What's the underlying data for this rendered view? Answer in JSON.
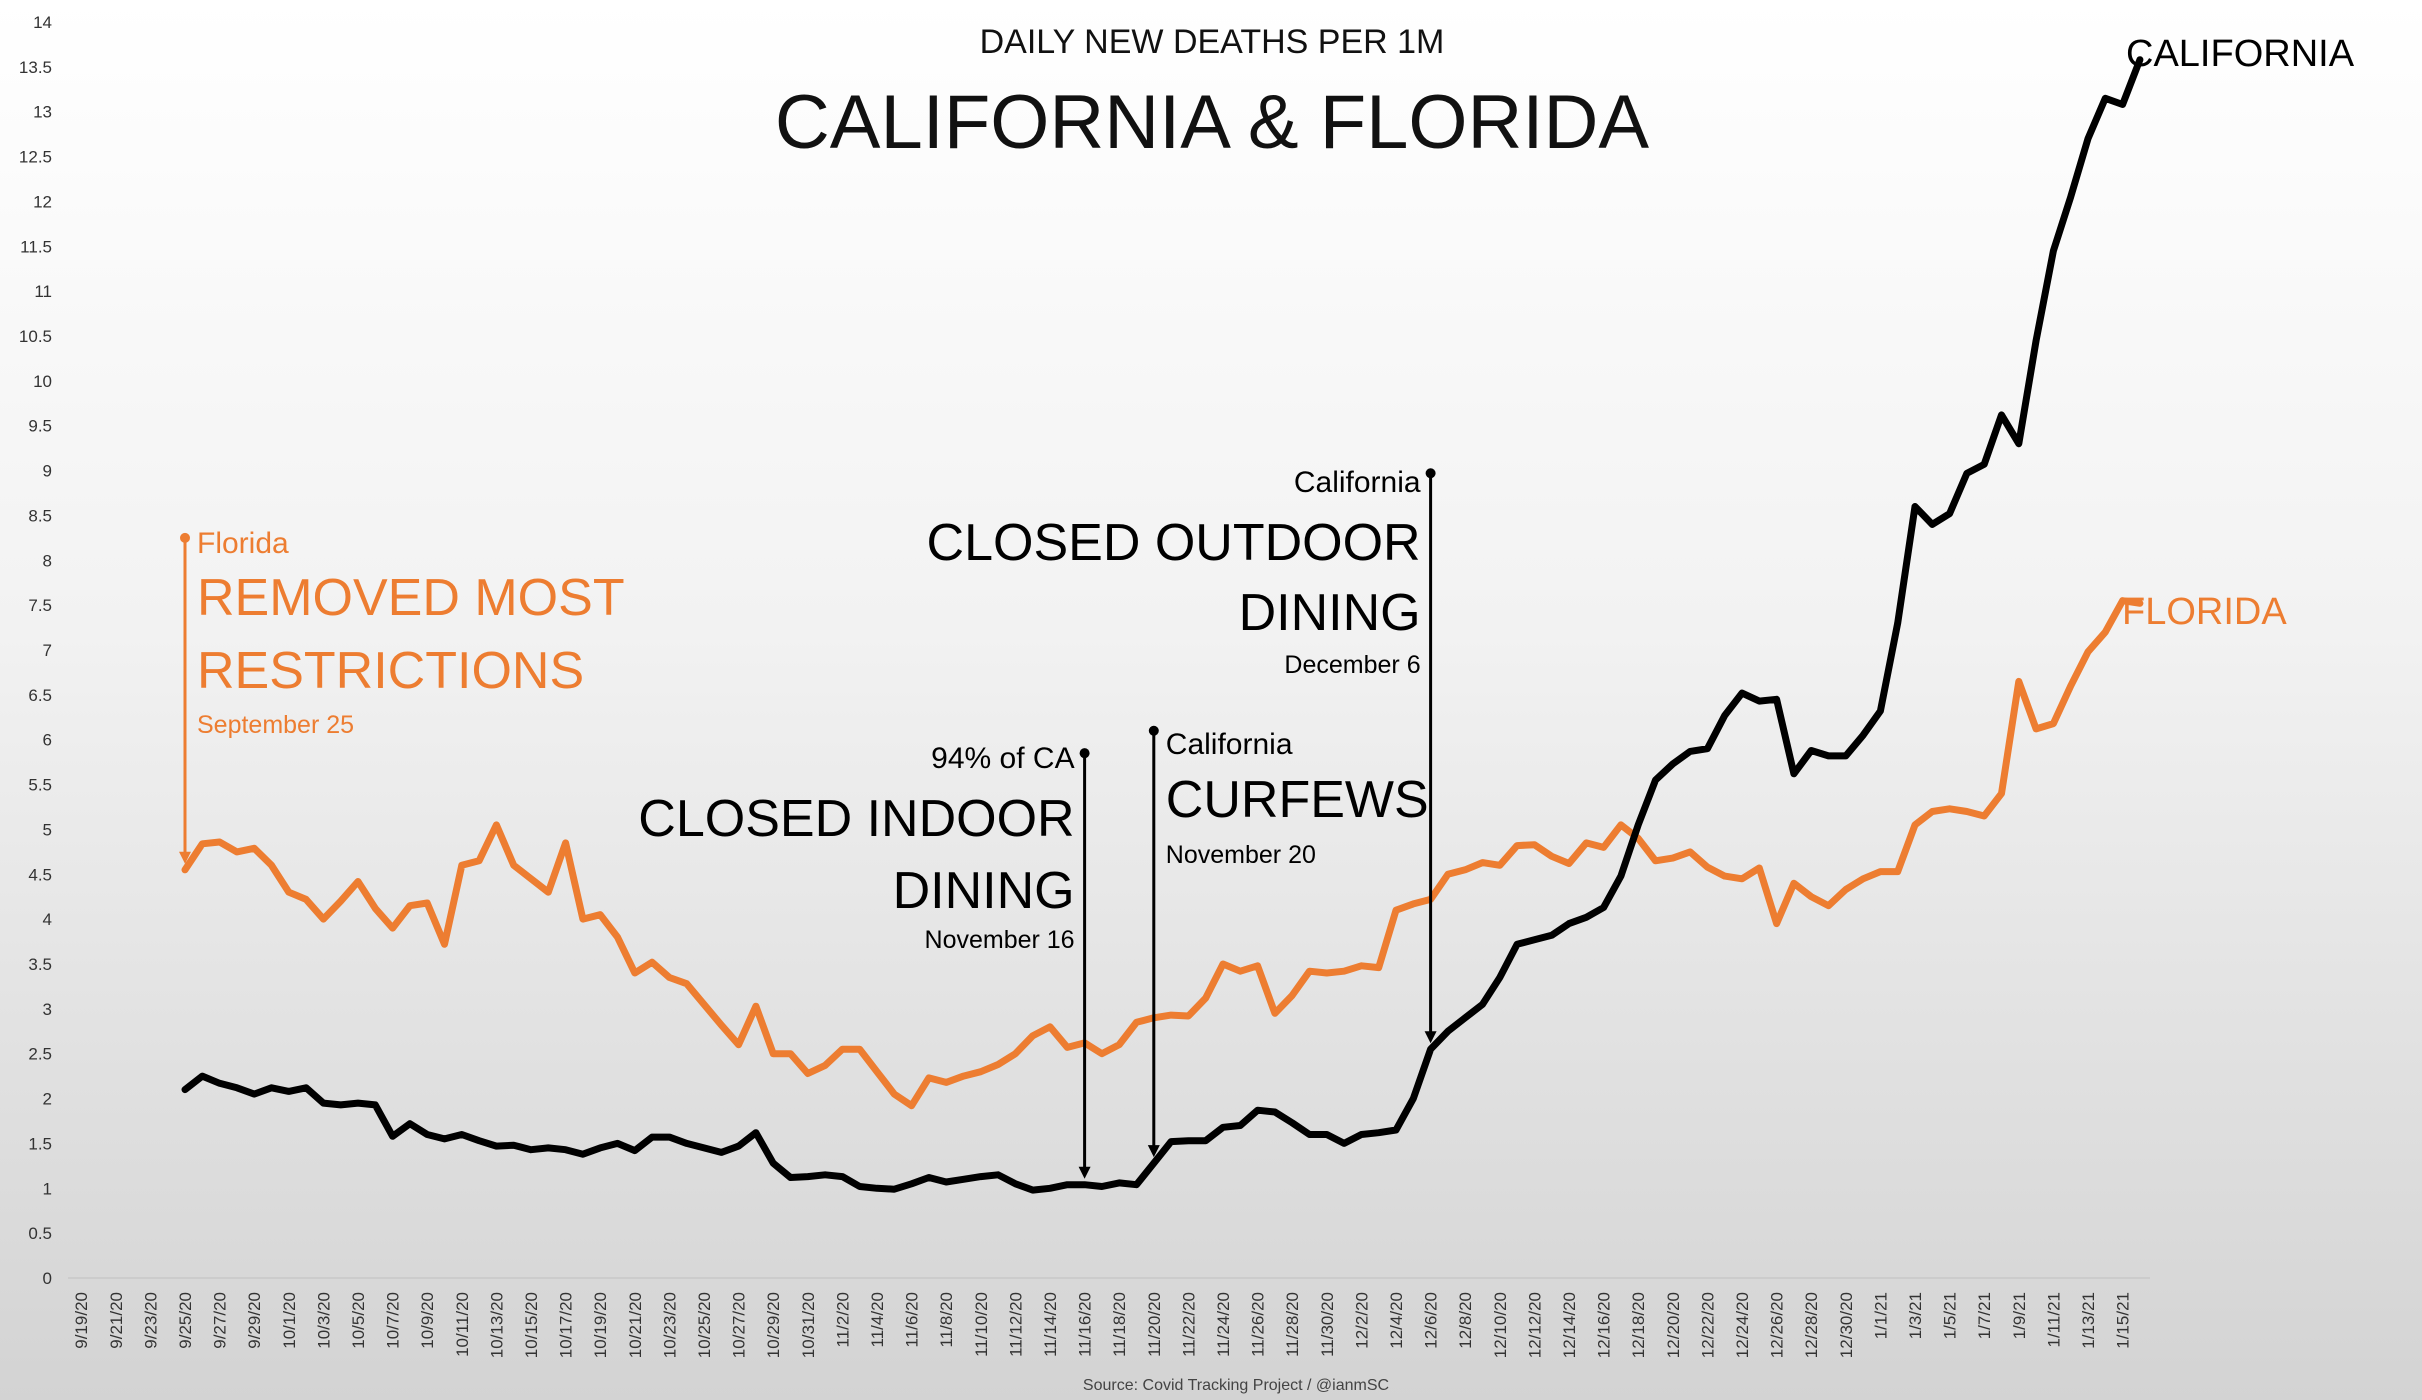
{
  "chart_data": {
    "type": "line",
    "title": "CALIFORNIA & FLORIDA",
    "subtitle": "DAILY NEW DEATHS PER 1M",
    "source": "Source: Covid Tracking Project / @ianmSC",
    "ylim": [
      0,
      14
    ],
    "yticks": [
      "0",
      "0.5",
      "1",
      "1.5",
      "2",
      "2.5",
      "3",
      "3.5",
      "4",
      "4.5",
      "5",
      "5.5",
      "6",
      "6.5",
      "7",
      "7.5",
      "8",
      "8.5",
      "9",
      "9.5",
      "10",
      "10.5",
      "11",
      "11.5",
      "12",
      "12.5",
      "13",
      "13.5",
      "14"
    ],
    "x_tick_labels": [
      "9/19/20",
      "9/21/20",
      "9/23/20",
      "9/25/20",
      "9/27/20",
      "9/29/20",
      "10/1/20",
      "10/3/20",
      "10/5/20",
      "10/7/20",
      "10/9/20",
      "10/11/20",
      "10/13/20",
      "10/15/20",
      "10/17/20",
      "10/19/20",
      "10/21/20",
      "10/23/20",
      "10/25/20",
      "10/27/20",
      "10/29/20",
      "10/31/20",
      "11/2/20",
      "11/4/20",
      "11/6/20",
      "11/8/20",
      "11/10/20",
      "11/12/20",
      "11/14/20",
      "11/16/20",
      "11/18/20",
      "11/20/20",
      "11/22/20",
      "11/24/20",
      "11/26/20",
      "11/28/20",
      "11/30/20",
      "12/2/20",
      "12/4/20",
      "12/6/20",
      "12/8/20",
      "12/10/20",
      "12/12/20",
      "12/14/20",
      "12/16/20",
      "12/18/20",
      "12/20/20",
      "12/22/20",
      "12/24/20",
      "12/26/20",
      "12/28/20",
      "12/30/20",
      "1/1/21",
      "1/3/21",
      "1/5/21",
      "1/7/21",
      "1/9/21",
      "1/11/21",
      "1/13/21",
      "1/15/21"
    ],
    "x_start_index": 6,
    "series": [
      {
        "name": "CALIFORNIA",
        "color": "#000000",
        "values": [
          2.1,
          2.25,
          2.17,
          2.12,
          2.05,
          2.12,
          2.08,
          2.12,
          1.95,
          1.93,
          1.95,
          1.93,
          1.58,
          1.72,
          1.6,
          1.55,
          1.6,
          1.53,
          1.47,
          1.48,
          1.43,
          1.45,
          1.43,
          1.38,
          1.45,
          1.5,
          1.42,
          1.57,
          1.57,
          1.5,
          1.45,
          1.4,
          1.47,
          1.62,
          1.28,
          1.12,
          1.13,
          1.15,
          1.13,
          1.02,
          1.0,
          0.99,
          1.05,
          1.12,
          1.07,
          1.1,
          1.13,
          1.15,
          1.05,
          0.98,
          1.0,
          1.04,
          1.04,
          1.02,
          1.06,
          1.04,
          1.28,
          1.52,
          1.53,
          1.53,
          1.68,
          1.7,
          1.87,
          1.85,
          1.73,
          1.6,
          1.6,
          1.5,
          1.6,
          1.62,
          1.65,
          2.0,
          2.55,
          2.75,
          2.9,
          3.05,
          3.35,
          3.72,
          3.77,
          3.82,
          3.95,
          4.02,
          4.13,
          4.48,
          5.05,
          5.55,
          5.73,
          5.87,
          5.9,
          6.27,
          6.52,
          6.43,
          6.45,
          5.62,
          5.88,
          5.82,
          5.82,
          6.05,
          6.32,
          7.3,
          8.6,
          8.4,
          8.52,
          8.97,
          9.07,
          9.62,
          9.3,
          10.45,
          11.45,
          12.05,
          12.7,
          13.15,
          13.08,
          13.58
        ]
      },
      {
        "name": "FLORIDA",
        "color": "#ed7d31",
        "values": [
          4.55,
          4.84,
          4.86,
          4.75,
          4.79,
          4.6,
          4.3,
          4.22,
          4.0,
          4.2,
          4.42,
          4.12,
          3.9,
          4.15,
          4.18,
          3.72,
          4.6,
          4.65,
          5.05,
          4.6,
          4.45,
          4.3,
          4.85,
          4.0,
          4.05,
          3.8,
          3.4,
          3.52,
          3.35,
          3.28,
          3.05,
          2.82,
          2.6,
          3.03,
          2.5,
          2.5,
          2.28,
          2.37,
          2.55,
          2.55,
          2.3,
          2.05,
          1.92,
          2.23,
          2.18,
          2.25,
          2.3,
          2.38,
          2.5,
          2.7,
          2.8,
          2.57,
          2.62,
          2.5,
          2.6,
          2.85,
          2.9,
          2.93,
          2.92,
          3.12,
          3.5,
          3.42,
          3.48,
          2.95,
          3.15,
          3.42,
          3.4,
          3.42,
          3.48,
          3.46,
          4.1,
          4.17,
          4.22,
          4.5,
          4.55,
          4.63,
          4.6,
          4.82,
          4.83,
          4.7,
          4.62,
          4.85,
          4.8,
          5.05,
          4.9,
          4.65,
          4.68,
          4.75,
          4.58,
          4.48,
          4.45,
          4.57,
          3.95,
          4.4,
          4.25,
          4.15,
          4.33,
          4.45,
          4.53,
          4.53,
          5.05,
          5.2,
          5.23,
          5.2,
          5.15,
          5.4,
          6.65,
          6.12,
          6.18,
          6.6,
          6.98,
          7.2,
          7.55,
          7.52
        ]
      }
    ],
    "end_labels": {
      "california": "CALIFORNIA",
      "florida": "FLORIDA"
    },
    "annotations": [
      {
        "date": "9/25/20",
        "series": "Florida",
        "lines": [
          "Florida",
          "REMOVED MOST",
          "RESTRICTIONS",
          "September 25"
        ],
        "color": "#ed7d31",
        "value_top": 8.25
      },
      {
        "date": "11/16/20",
        "lines": [
          "94% of CA",
          "CLOSED INDOOR",
          "DINING",
          "November 16"
        ],
        "color": "#000000",
        "value_top": 5.85
      },
      {
        "date": "11/20/20",
        "lines": [
          "California",
          "CURFEWS",
          "November 20"
        ],
        "color": "#000000",
        "value_top": 6.1
      },
      {
        "date": "12/6/20",
        "lines": [
          "California",
          "CLOSED OUTDOOR",
          "DINING",
          "December 6"
        ],
        "color": "#000000",
        "value_top": 8.97
      }
    ],
    "grid": false
  }
}
